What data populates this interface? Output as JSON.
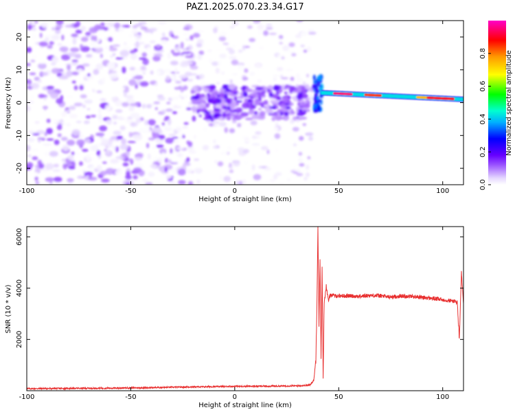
{
  "title": "PAZ1.2025.070.23.34.G17",
  "chart_data": [
    {
      "type": "heatmap",
      "xlabel": "Height of straight line (km)",
      "ylabel": "Frequency (Hz)",
      "xlim": [
        -100,
        110
      ],
      "ylim": [
        -25,
        25
      ],
      "xticks": [
        -100,
        -50,
        0,
        50,
        100
      ],
      "yticks": [
        -20,
        -10,
        0,
        10,
        20
      ],
      "colorbar": {
        "label": "Normalized spectral amplitude",
        "range": [
          0,
          1
        ],
        "ticks": [
          "0.0",
          "0.2",
          "0.4",
          "0.6",
          "0.8"
        ],
        "colormap": "rainbow (violet → blue → cyan → green → yellow → orange → red → magenta)"
      },
      "regions": [
        {
          "x_range": [
            -100,
            -20
          ],
          "frequency_range": [
            -25,
            25
          ],
          "amplitude": [
            0.0,
            0.15
          ],
          "pattern": "scattered noise"
        },
        {
          "x_range": [
            -20,
            35
          ],
          "frequency_range": [
            -5,
            5
          ],
          "amplitude": [
            0.05,
            0.2
          ],
          "pattern": "concentrated noise band"
        },
        {
          "x_range": [
            38,
            42
          ],
          "frequency_range": [
            -3,
            8
          ],
          "amplitude": [
            0.2,
            0.4
          ],
          "pattern": "transition"
        },
        {
          "x_range": [
            42,
            110
          ],
          "frequency_range": [
            1,
            3
          ],
          "amplitude": [
            0.3,
            1.0
          ],
          "pattern": "narrow signal line, frequency drifting from ~3 Hz to ~1 Hz"
        }
      ]
    },
    {
      "type": "line",
      "xlabel": "Height of straight line (km)",
      "ylabel": "SNR (10 * v/v)",
      "xlim": [
        -100,
        110
      ],
      "ylim": [
        0,
        6400
      ],
      "xticks": [
        -100,
        -50,
        0,
        50,
        100
      ],
      "yticks": [
        2000,
        4000,
        6000
      ],
      "color": "#e83030",
      "series": [
        {
          "x": [
            -100,
            -80,
            -60,
            -40,
            -20,
            0,
            20,
            30,
            36,
            38,
            39,
            39.5,
            40,
            40.5,
            41,
            41.5,
            42,
            42.5,
            43,
            44,
            45,
            46,
            48,
            50,
            55,
            60,
            65,
            70,
            75,
            80,
            85,
            90,
            95,
            100,
            105,
            107,
            108,
            109,
            110
          ],
          "y": [
            80,
            90,
            100,
            120,
            150,
            170,
            180,
            190,
            220,
            400,
            1200,
            3300,
            6400,
            2500,
            5200,
            1200,
            4800,
            500,
            3400,
            4100,
            3500,
            3750,
            3700,
            3700,
            3700,
            3680,
            3720,
            3700,
            3650,
            3690,
            3680,
            3640,
            3600,
            3550,
            3500,
            3450,
            2000,
            4600,
            3400
          ]
        }
      ]
    }
  ]
}
